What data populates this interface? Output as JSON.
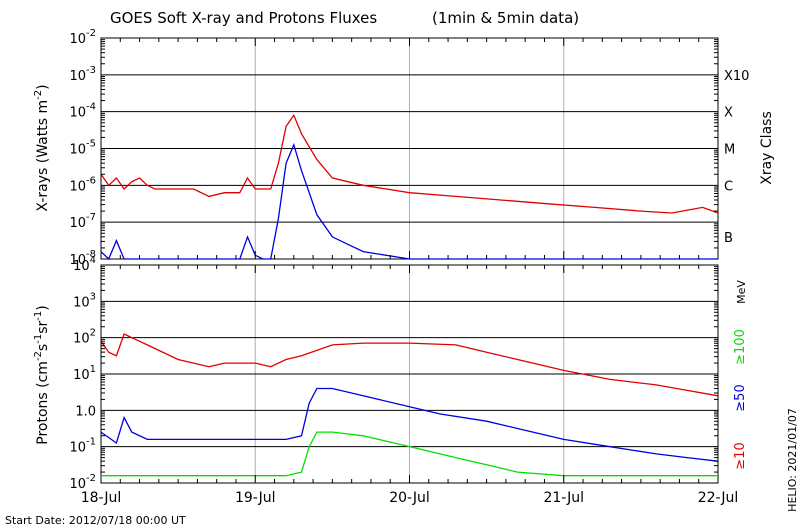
{
  "title": "GOES Soft X-ray and Protons Fluxes",
  "subtitle": "(1min & 5min data)",
  "start_date": "Start Date: 2012/07/18 00:00 UT",
  "credit": "HELIO: 2021/01/07",
  "colors": {
    "red": "#e00000",
    "blue": "#0000e0",
    "green": "#00e000",
    "grid_vertical": "#b0b0b0",
    "grid_horizontal": "#000000"
  },
  "chart_data": [
    {
      "type": "line",
      "name": "xray",
      "ylabel": "X-rays (Watts m-2)",
      "ylabel_parts": {
        "main": "X-rays (Watts m",
        "sup": "-2",
        "close": ")"
      },
      "right_label": "Xray Class",
      "yscale": "log",
      "ylim_exp": [
        -8,
        -2
      ],
      "y_ticks": [
        "10-8",
        "10-7",
        "10-6",
        "10-5",
        "10-4",
        "10-3",
        "10-2"
      ],
      "y_tick_exponents": [
        -8,
        -7,
        -6,
        -5,
        -4,
        -3,
        -2
      ],
      "classes": [
        {
          "label": "B",
          "exp": -7.4
        },
        {
          "label": "C",
          "exp": -6.0
        },
        {
          "label": "M",
          "exp": -5.0
        },
        {
          "label": "X",
          "exp": -4.0
        },
        {
          "label": "X10",
          "exp": -3.0
        }
      ],
      "x_days": [
        "18-Jul",
        "19-Jul",
        "20-Jul",
        "21-Jul",
        "22-Jul"
      ],
      "grid": true,
      "series": [
        {
          "color": "red",
          "x": [
            0.0,
            0.05,
            0.1,
            0.15,
            0.2,
            0.25,
            0.3,
            0.35,
            0.4,
            0.5,
            0.6,
            0.7,
            0.8,
            0.9,
            0.95,
            1.0,
            1.1,
            1.15,
            1.2,
            1.25,
            1.3,
            1.4,
            1.5,
            1.7,
            2.0,
            2.3,
            2.6,
            2.9,
            3.2,
            3.5,
            3.7,
            3.9,
            4.0
          ],
          "y": [
            -5.7,
            -6.0,
            -5.8,
            -6.1,
            -5.9,
            -5.8,
            -6.0,
            -6.1,
            -6.1,
            -6.1,
            -6.1,
            -6.3,
            -6.2,
            -6.2,
            -5.8,
            -6.1,
            -6.1,
            -5.4,
            -4.4,
            -4.1,
            -4.6,
            -5.3,
            -5.8,
            -6.0,
            -6.2,
            -6.3,
            -6.4,
            -6.5,
            -6.6,
            -6.7,
            -6.75,
            -6.6,
            -6.75
          ]
        },
        {
          "color": "blue",
          "x": [
            0.0,
            0.05,
            0.1,
            0.15,
            0.2,
            0.3,
            0.4,
            0.5,
            0.6,
            0.7,
            0.8,
            0.9,
            0.95,
            1.0,
            1.05,
            1.1,
            1.15,
            1.2,
            1.25,
            1.3,
            1.4,
            1.5,
            1.6,
            1.7,
            2.0,
            2.3,
            2.6,
            2.9,
            3.2,
            3.5,
            3.8,
            4.0
          ],
          "y": [
            -7.8,
            -8.0,
            -7.5,
            -8.0,
            -8.0,
            -8.0,
            -8.0,
            -8.0,
            -8.0,
            -8.0,
            -8.0,
            -8.0,
            -7.4,
            -7.9,
            -8.0,
            -8.0,
            -6.9,
            -5.4,
            -4.9,
            -5.6,
            -6.8,
            -7.4,
            -7.6,
            -7.8,
            -8.0,
            -8.0,
            -8.0,
            -8.0,
            -8.0,
            -8.0,
            -8.0,
            -8.0
          ]
        }
      ]
    },
    {
      "type": "line",
      "name": "protons",
      "ylabel": "Protons (cm-2s-1sr-1)",
      "ylabel_parts": {
        "a": "Protons (cm",
        "s1": "-2",
        "b": "s",
        "s2": "-1",
        "c": "sr",
        "s3": "-1",
        "d": ")"
      },
      "yscale": "log",
      "ylim_exp": [
        -2,
        4
      ],
      "y_ticks": [
        "10-2",
        "10-1",
        "10",
        "10",
        "10",
        "10",
        "10"
      ],
      "y_tick_labels": [
        {
          "base": "10",
          "sup": "-2"
        },
        {
          "base": "10",
          "sup": "-1"
        },
        {
          "base": "1.0",
          "sup": ""
        },
        {
          "base": "10",
          "sup": "1"
        },
        {
          "base": "10",
          "sup": "2"
        },
        {
          "base": "10",
          "sup": "3"
        },
        {
          "base": "10",
          "sup": "4"
        }
      ],
      "y_tick_exponents": [
        -2,
        -1,
        0,
        1,
        2,
        3,
        4
      ],
      "threshold_exp": 1.0,
      "energy_unit": "MeV",
      "energy_labels": [
        {
          "label": "≥100",
          "color": "green"
        },
        {
          "label": "≥50",
          "color": "blue"
        },
        {
          "label": "≥10",
          "color": "red"
        }
      ],
      "x_days": [
        "18-Jul",
        "19-Jul",
        "20-Jul",
        "21-Jul",
        "22-Jul"
      ],
      "grid": true,
      "series": [
        {
          "color": "red",
          "x": [
            0.0,
            0.05,
            0.1,
            0.15,
            0.2,
            0.3,
            0.5,
            0.7,
            0.8,
            1.0,
            1.1,
            1.2,
            1.3,
            1.5,
            1.7,
            2.0,
            2.3,
            2.5,
            2.7,
            3.0,
            3.3,
            3.6,
            3.8,
            4.0
          ],
          "y": [
            1.9,
            1.6,
            1.5,
            2.1,
            2.0,
            1.8,
            1.4,
            1.2,
            1.3,
            1.3,
            1.2,
            1.4,
            1.5,
            1.8,
            1.85,
            1.85,
            1.8,
            1.6,
            1.4,
            1.1,
            0.85,
            0.7,
            0.55,
            0.4
          ]
        },
        {
          "color": "blue",
          "x": [
            0.0,
            0.1,
            0.15,
            0.2,
            0.3,
            0.5,
            0.7,
            1.0,
            1.1,
            1.2,
            1.3,
            1.35,
            1.4,
            1.5,
            1.7,
            2.0,
            2.2,
            2.5,
            2.7,
            3.0,
            3.3,
            3.6,
            3.8,
            4.0
          ],
          "y": [
            -0.6,
            -0.9,
            -0.2,
            -0.6,
            -0.8,
            -0.8,
            -0.8,
            -0.8,
            -0.8,
            -0.8,
            -0.7,
            0.2,
            0.6,
            0.6,
            0.4,
            0.1,
            -0.1,
            -0.3,
            -0.5,
            -0.8,
            -1.0,
            -1.2,
            -1.3,
            -1.4
          ]
        },
        {
          "color": "green",
          "x": [
            0.0,
            0.3,
            0.6,
            0.9,
            1.2,
            1.3,
            1.35,
            1.4,
            1.5,
            1.7,
            1.9,
            2.1,
            2.3,
            2.5,
            2.7,
            3.0,
            3.5,
            4.0
          ],
          "y": [
            -1.8,
            -1.8,
            -1.8,
            -1.8,
            -1.8,
            -1.7,
            -1.0,
            -0.6,
            -0.6,
            -0.7,
            -0.9,
            -1.1,
            -1.3,
            -1.5,
            -1.7,
            -1.8,
            -1.8,
            -1.8
          ]
        }
      ]
    }
  ]
}
